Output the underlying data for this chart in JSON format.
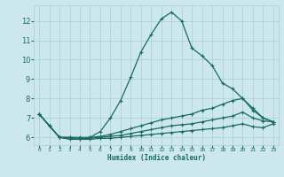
{
  "xlabel": "Humidex (Indice chaleur)",
  "bg_color": "#cce8ee",
  "grid_color": "#aaccd4",
  "line_color": "#1a6b5e",
  "xlim": [
    -0.5,
    23.5
  ],
  "ylim": [
    5.6,
    12.8
  ],
  "xticks": [
    0,
    1,
    2,
    3,
    4,
    5,
    6,
    7,
    8,
    9,
    10,
    11,
    12,
    13,
    14,
    15,
    16,
    17,
    18,
    19,
    20,
    21,
    22,
    23
  ],
  "yticks": [
    6,
    7,
    8,
    9,
    10,
    11,
    12
  ],
  "line1_x": [
    0,
    1,
    2,
    3,
    4,
    5,
    6,
    7,
    8,
    9,
    10,
    11,
    12,
    13,
    14,
    15,
    16,
    17,
    18,
    19,
    20,
    21,
    22,
    23
  ],
  "line1_y": [
    7.2,
    6.6,
    6.0,
    5.9,
    5.9,
    6.0,
    6.3,
    7.0,
    7.9,
    9.1,
    10.4,
    11.3,
    12.1,
    12.45,
    12.0,
    10.6,
    10.2,
    9.7,
    8.8,
    8.5,
    8.0,
    7.4,
    7.0,
    6.8
  ],
  "line2_x": [
    0,
    1,
    2,
    3,
    4,
    5,
    6,
    7,
    8,
    9,
    10,
    11,
    12,
    13,
    14,
    15,
    16,
    17,
    18,
    19,
    20,
    21,
    22,
    23
  ],
  "line2_y": [
    7.2,
    6.6,
    6.0,
    6.0,
    6.0,
    6.0,
    6.05,
    6.15,
    6.3,
    6.45,
    6.6,
    6.75,
    6.9,
    7.0,
    7.1,
    7.2,
    7.4,
    7.5,
    7.7,
    7.9,
    8.0,
    7.5,
    7.0,
    6.8
  ],
  "line3_x": [
    0,
    1,
    2,
    3,
    4,
    5,
    6,
    7,
    8,
    9,
    10,
    11,
    12,
    13,
    14,
    15,
    16,
    17,
    18,
    19,
    20,
    21,
    22,
    23
  ],
  "line3_y": [
    7.2,
    6.6,
    6.0,
    6.0,
    5.95,
    5.95,
    6.0,
    6.05,
    6.1,
    6.2,
    6.3,
    6.4,
    6.5,
    6.6,
    6.65,
    6.7,
    6.8,
    6.9,
    7.0,
    7.1,
    7.3,
    7.0,
    6.85,
    6.8
  ],
  "line4_x": [
    0,
    1,
    2,
    3,
    4,
    5,
    6,
    7,
    8,
    9,
    10,
    11,
    12,
    13,
    14,
    15,
    16,
    17,
    18,
    19,
    20,
    21,
    22,
    23
  ],
  "line4_y": [
    7.2,
    6.6,
    6.0,
    5.95,
    5.9,
    5.9,
    5.95,
    5.95,
    6.0,
    6.05,
    6.1,
    6.15,
    6.2,
    6.25,
    6.3,
    6.35,
    6.4,
    6.45,
    6.5,
    6.6,
    6.7,
    6.55,
    6.5,
    6.7
  ]
}
